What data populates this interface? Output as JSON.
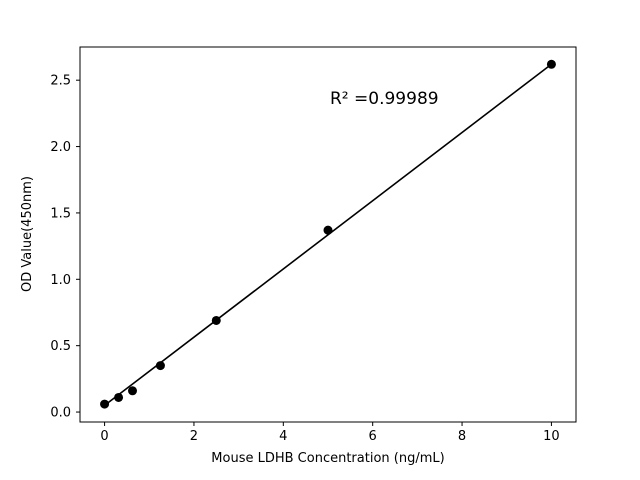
{
  "chart_data": {
    "type": "scatter",
    "title": "",
    "xlabel": "Mouse LDHB Concentration (ng/mL)",
    "ylabel": "OD Value(450nm)",
    "annotation": "R² =0.99989",
    "x": [
      0,
      0.313,
      0.625,
      1.25,
      2.5,
      5,
      10
    ],
    "y": [
      0.06,
      0.11,
      0.16,
      0.35,
      0.69,
      1.37,
      2.62
    ],
    "fit_line": {
      "x": [
        0,
        10
      ],
      "y": [
        0.05,
        2.62
      ]
    },
    "xlim": [
      -0.55,
      10.55
    ],
    "ylim": [
      -0.075,
      2.75
    ],
    "xtick_values": [
      0,
      2,
      4,
      6,
      8,
      10
    ],
    "xtick_labels": [
      "0",
      "2",
      "4",
      "6",
      "8",
      "10"
    ],
    "ytick_values": [
      0.0,
      0.5,
      1.0,
      1.5,
      2.0,
      2.5
    ],
    "ytick_labels": [
      "0.0",
      "0.5",
      "1.0",
      "1.5",
      "2.0",
      "2.5"
    ],
    "grid": false,
    "legend": null,
    "marker_color": "#000000",
    "line_color": "#000000",
    "background_color": "#ffffff"
  }
}
